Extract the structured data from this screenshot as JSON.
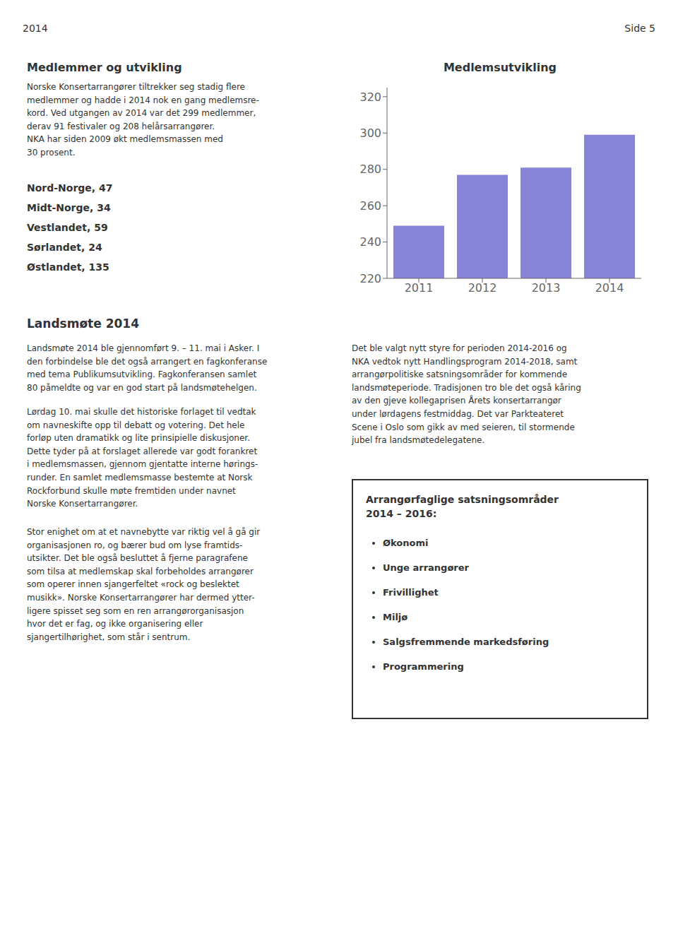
{
  "chart_data": {
    "type": "bar",
    "title": "Medlemsutvikling",
    "categories": [
      "2011",
      "2012",
      "2013",
      "2014"
    ],
    "values": [
      249,
      277,
      281,
      299
    ],
    "color": "#8884d8",
    "ylim": [
      220,
      325
    ],
    "yticks": [
      220,
      240,
      260,
      280,
      300,
      320
    ],
    "grid": false,
    "annotations": [
      "2014",
      "Side 5",
      "Medlemmer og utvikling",
      "Norske Konsertarrangører tiltrekker seg stadig flere\nmedlemmer og hadde i 2014 nok en gang medlemsre-\nkord. Ved utgangen av 2014 var det 299 medlemmer,\nderav 91 festivaler og 208 helårsarrangører.\nNKA har siden 2009 økt medlemsmassen med\n30 prosent.",
      "Nord-Norge, 47",
      "Midt-Norge, 34",
      "Vestlandet, 59",
      "Sørlandet, 24",
      "Østlandet, 135",
      "Landsmøte 2014",
      "Landsmøte 2014 ble gjennomført 9. – 11. mai i Asker. I\nden forbindelse ble det også arrangert en fagkonferanse\nmed tema Publikumsutvikling. Fagkonferansen samlet\n80 påmeldte og var en god start på landsmøtehelgen.",
      "Lørdag 10. mai skulle det historiske forlaget til vedtak\nom navneskifte opp til debatt og votering. Det hele\nforløp uten dramatikk og lite prinsipielle diskusjoner.\nDette tyder på at forslaget allerede var godt forankret\ni medlemsmassen, gjennom gjentatte interne hørings-\nrunder. En samlet medlemsmasse bestemte at Norsk\nRockforbund skulle møte fremtiden under navnet\nNorske Konsertarrangører.",
      "Stor enighet om at et navnebytte var riktig vel å gå gir\norganisasjonen ro, og bærer bud om lyse framtids-\nutsikter. Det ble også besluttet å fjerne paragrafene\nsom tilsa at medlemskap skal forbeholdes arrangører\nsom operer innen sjangerfeltet «rock og beslektet\nmusikk». Norske Konsertarrangører har dermed ytter-\nligere spisset seg som en ren arrangørorganisasjon\nhvor det er fag, og ikke organisering eller\nsjangertilhørighet, som står i sentrum.",
      "Det ble valgt nytt styre for perioden 2014-2016 og\nNKA vedtok nytt Handlingsprogram 2014-2018, samt\narrangørpolitiske satsningsområder for kommende\nlandsmøteperiode. Tradisjonen tro ble det også kåring\nav den gjeve kollegaprisen Årets konsertarrangør\nunder lørdagens festmiddag. Det var Parkteateret\nScene i Oslo som gikk av med seieren, til stormende\njubel fra landsmøtedelegatene.",
      "Arrangørfaglige satsningsområder\n2014 – 2016:",
      "Økonomi",
      "Unge arrangører",
      "Frivillighet",
      "Miljø",
      "Salgsfremmende markedsføring",
      "Programmering"
    ]
  }
}
